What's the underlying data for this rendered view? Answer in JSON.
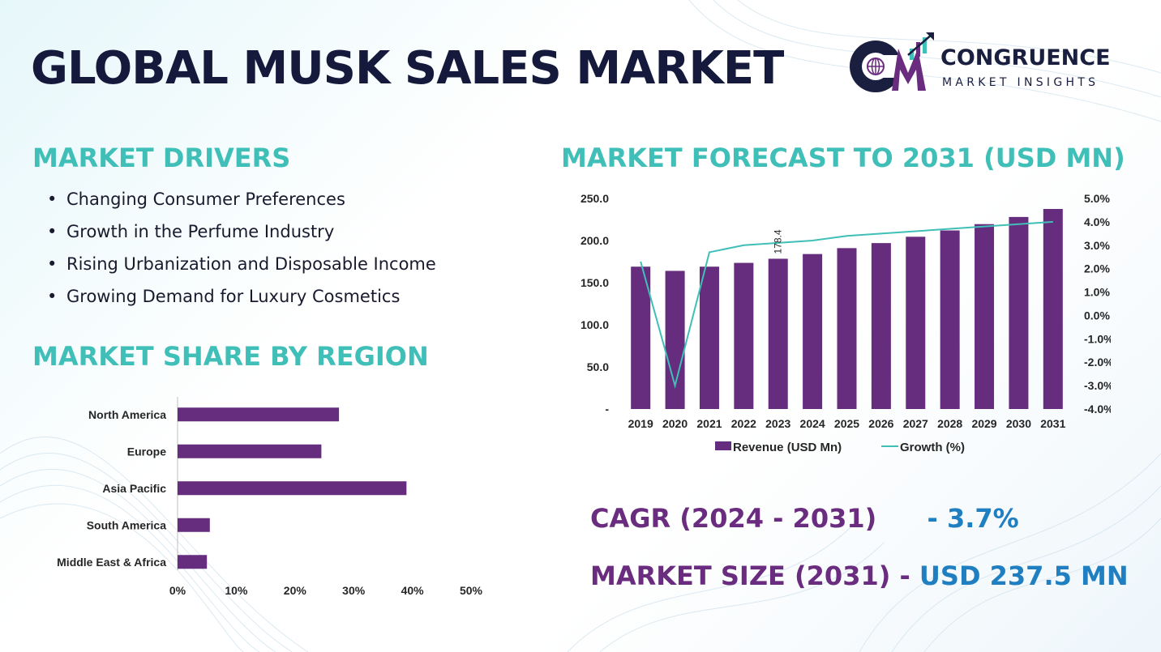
{
  "title": "GLOBAL MUSK SALES MARKET",
  "brand": {
    "name": "CONGRUENCE",
    "tagline": "MARKET INSIGHTS"
  },
  "drivers": {
    "heading": "MARKET DRIVERS",
    "items": [
      "Changing Consumer Preferences",
      "Growth in the Perfume Industry",
      "Rising Urbanization and Disposable Income",
      "Growing Demand for Luxury Cosmetics"
    ]
  },
  "region_heading": "MARKET SHARE BY REGION",
  "forecast_heading": "MARKET FORECAST TO 2031 (USD MN)",
  "stats": {
    "cagr_label": "CAGR (2024 - 2031)",
    "cagr_value": "- 3.7%",
    "size_label": "MARKET SIZE (2031)",
    "size_sep": " - ",
    "size_value": "USD  237.5 MN"
  },
  "colors": {
    "bar": "#662d7e",
    "line": "#3fbfb7",
    "heading": "#3fbfb7",
    "title": "#151a3d"
  },
  "chart_data": [
    {
      "type": "bar",
      "orientation": "horizontal",
      "categories": [
        "North America",
        "Europe",
        "Asia Pacific",
        "South America",
        "Middle East & Africa"
      ],
      "values": [
        27.5,
        24.5,
        39,
        5.5,
        5
      ],
      "xlim": [
        0,
        50
      ],
      "xticks": [
        0,
        10,
        20,
        30,
        40,
        50
      ],
      "xtick_labels": [
        "0%",
        "10%",
        "20%",
        "30%",
        "40%",
        "50%"
      ],
      "grid": false
    },
    {
      "type": "bar",
      "combo": "bar+line",
      "categories": [
        "2019",
        "2020",
        "2021",
        "2022",
        "2023",
        "2024",
        "2025",
        "2026",
        "2027",
        "2028",
        "2029",
        "2030",
        "2031"
      ],
      "series": [
        {
          "name": "Revenue (USD Mn)",
          "type": "bar",
          "axis": "left",
          "values": [
            169,
            164,
            169,
            173.5,
            178.4,
            184,
            191,
            197,
            204.5,
            212,
            219.5,
            228,
            237.5
          ]
        },
        {
          "name": "Growth (%)",
          "type": "line",
          "axis": "right",
          "values": [
            2.3,
            -3.0,
            2.7,
            3.0,
            3.1,
            3.2,
            3.4,
            3.5,
            3.6,
            3.7,
            3.8,
            3.9,
            4.0
          ]
        }
      ],
      "data_labels": [
        {
          "index": 4,
          "text": "178.4"
        }
      ],
      "ylim_left": [
        0,
        250
      ],
      "yticks_left": [
        0,
        50,
        100,
        150,
        200,
        250
      ],
      "ytick_labels_left": [
        "-",
        "50.0",
        "100.0",
        "150.0",
        "200.0",
        "250.0"
      ],
      "ylim_right": [
        -4,
        5
      ],
      "yticks_right": [
        -4,
        -3,
        -2,
        -1,
        0,
        1,
        2,
        3,
        4,
        5
      ],
      "ytick_labels_right": [
        "-4.0%",
        "-3.0%",
        "-2.0%",
        "-1.0%",
        "0.0%",
        "1.0%",
        "2.0%",
        "3.0%",
        "4.0%",
        "5.0%"
      ],
      "legend": "bottom",
      "grid": false
    }
  ]
}
